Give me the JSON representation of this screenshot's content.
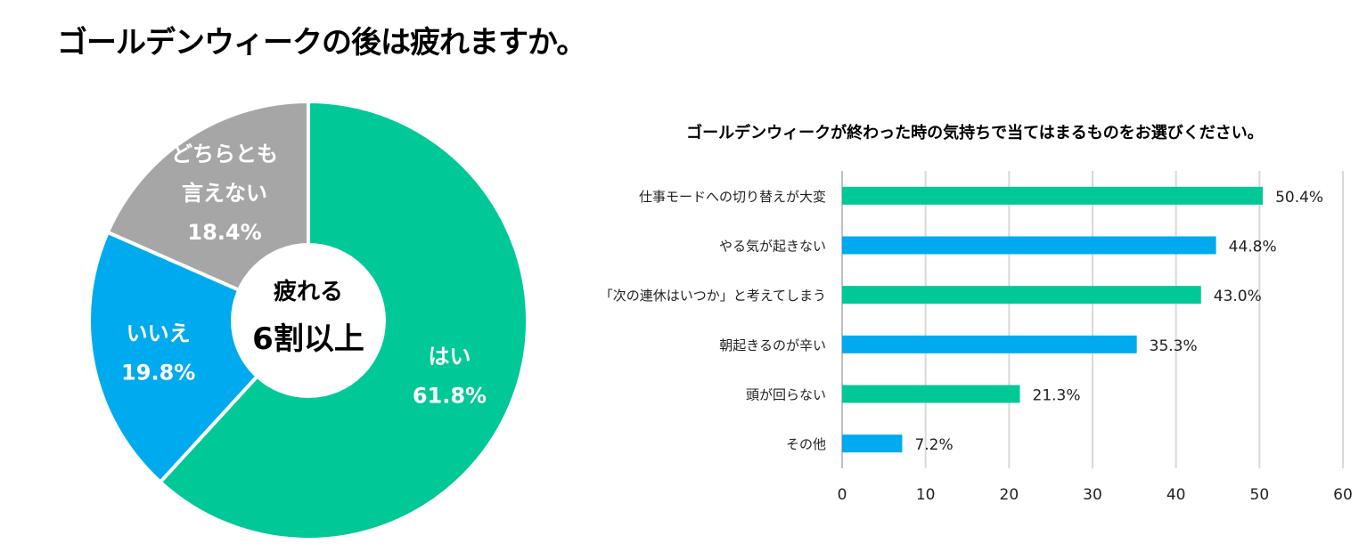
{
  "page_title": "ゴールデンウィークの後は疲れますか。",
  "colors": {
    "green": "#00C896",
    "blue": "#00AAEE",
    "gray": "#A6A6A6",
    "grid": "#D9D9D9"
  },
  "chart_data": [
    {
      "type": "pie",
      "title": "",
      "center_label": [
        "疲れる",
        "6割以上"
      ],
      "slices": [
        {
          "label": "はい",
          "value": 61.8,
          "value_label": "61.8%",
          "color": "#00C896"
        },
        {
          "label": "いいえ",
          "value": 19.8,
          "value_label": "19.8%",
          "color": "#00AAEE"
        },
        {
          "label": "どちらとも言えない",
          "label_lines": [
            "どちらとも",
            "言えない"
          ],
          "value": 18.4,
          "value_label": "18.4%",
          "color": "#A6A6A6"
        }
      ]
    },
    {
      "type": "bar",
      "orientation": "horizontal",
      "title": "ゴールデンウィークが終わった時の気持ちで当てはまるものをお選びください。",
      "categories": [
        "仕事モードへの切り替えが大変",
        "やる気が起きない",
        "「次の連休はいつか」と考えてしまう",
        "朝起きるのが辛い",
        "頭が回らない",
        "その他"
      ],
      "values": [
        50.4,
        44.8,
        43.0,
        35.3,
        21.3,
        7.2
      ],
      "value_labels": [
        "50.4%",
        "44.8%",
        "43.0%",
        "35.3%",
        "21.3%",
        "7.2%"
      ],
      "bar_colors": [
        "#00C896",
        "#00AAEE",
        "#00C896",
        "#00AAEE",
        "#00C896",
        "#00AAEE"
      ],
      "xlim": [
        0,
        60
      ],
      "xticks": [
        0,
        10,
        20,
        30,
        40,
        50,
        60
      ],
      "grid": true
    }
  ]
}
